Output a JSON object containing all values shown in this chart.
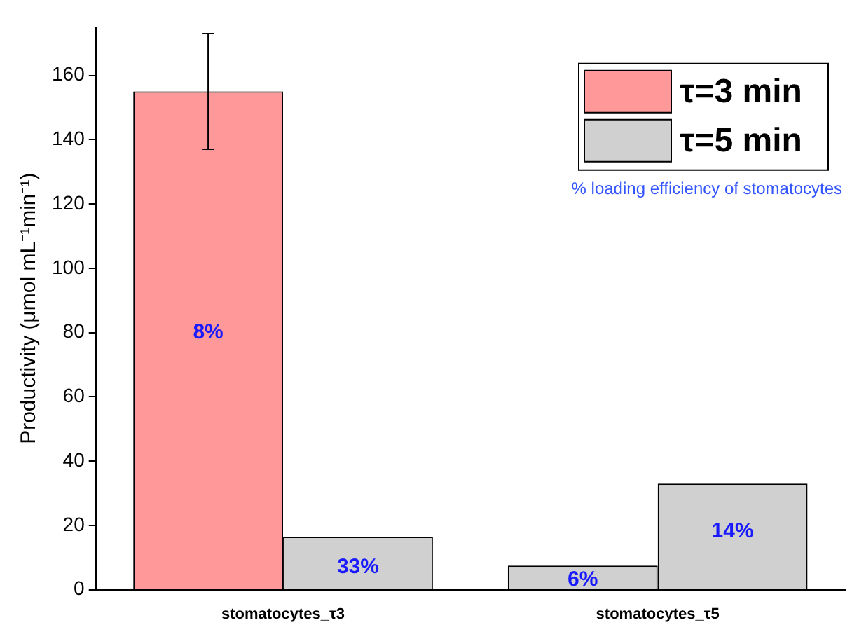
{
  "chart_data": {
    "type": "bar",
    "categories": [
      "stomatocytes_τ3",
      "stomatocytes_τ5"
    ],
    "series": [
      {
        "name": "τ=3 min",
        "color": "#ff9999",
        "colors": [
          "#ff9999",
          "#d0d0d0"
        ],
        "values": [
          155,
          7.5
        ],
        "errors": [
          [
            137,
            173
          ],
          null
        ]
      },
      {
        "name": "τ=5 min",
        "color": "#d0d0d0",
        "values": [
          16.5,
          33
        ]
      }
    ],
    "ylabel": "Productivity (μmol mL⁻¹min⁻¹)",
    "ylim": [
      0,
      175
    ],
    "yticks": [
      0,
      20,
      40,
      60,
      80,
      100,
      120,
      140,
      160
    ],
    "grid": false,
    "legend": "top right",
    "annotations": [
      "% loading efficiency of stomatocytes",
      {
        "text": "8%",
        "x": "stomatocytes_τ3",
        "y": 80
      },
      {
        "text": "33%",
        "x": "stomatocytes_τ3",
        "y": 7
      },
      {
        "text": "6%",
        "x": "stomatocytes_τ5",
        "y": 3
      },
      {
        "text": "14%",
        "x": "stomatocytes_τ5",
        "y": 18
      }
    ]
  }
}
